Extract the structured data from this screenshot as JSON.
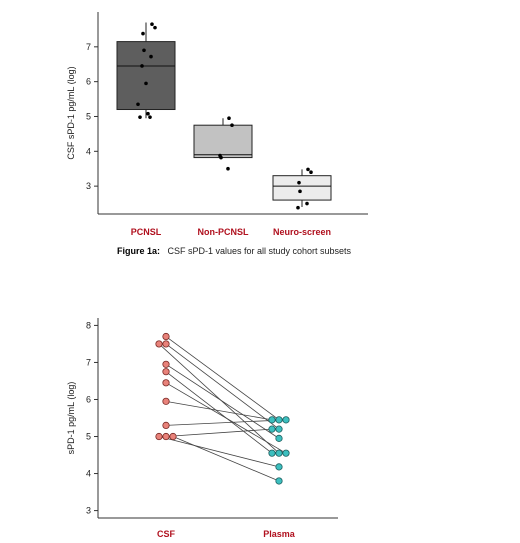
{
  "colors": {
    "category_label": "#b0101e",
    "caption_label": "#c0101e",
    "axis": "#333333",
    "csf_marker": "#e8827a",
    "csf_marker_edge": "#7a2a26",
    "plasma_marker": "#3cbfbf",
    "plasma_marker_edge": "#1f6060",
    "pair_line": "#444444"
  },
  "caption": {
    "label": "Figure 1a:",
    "text": "CSF sPD-1 values for all study cohort subsets"
  },
  "chart_data": [
    {
      "type": "box",
      "ylabel": "CSF sPD-1 pg/mL (log)",
      "xlabel": "",
      "ylim": [
        2.2,
        8.0
      ],
      "yticks": [
        "3",
        "4",
        "5",
        "6",
        "7"
      ],
      "categories": [
        "PCNSL",
        "Non-PCNSL",
        "Neuro-screen"
      ],
      "boxes": [
        {
          "name": "PCNSL",
          "fill": "#5e5e5e",
          "whisker_low": 4.95,
          "q1": 5.2,
          "median": 6.45,
          "q3": 7.15,
          "whisker_high": 7.7,
          "points": [
            7.65,
            7.55,
            7.38,
            6.9,
            6.72,
            6.45,
            5.95,
            5.35,
            5.08,
            4.98,
            4.98
          ]
        },
        {
          "name": "Non-PCNSL",
          "fill": "#c2c2c2",
          "whisker_low": 3.82,
          "q1": 3.82,
          "median": 3.9,
          "q3": 4.75,
          "whisker_high": 4.95,
          "points": [
            4.95,
            4.75,
            3.88,
            3.82,
            3.5
          ]
        },
        {
          "name": "Neuro-screen",
          "fill": "#ececec",
          "whisker_low": 2.4,
          "q1": 2.6,
          "median": 3.0,
          "q3": 3.3,
          "whisker_high": 3.48,
          "points": [
            3.48,
            3.4,
            3.1,
            2.85,
            2.5,
            2.38
          ]
        }
      ]
    },
    {
      "type": "scatter",
      "ylabel": "sPD-1 pg/mL (log)",
      "xlabel": "",
      "ylim": [
        2.8,
        8.2
      ],
      "yticks": [
        "3",
        "4",
        "5",
        "6",
        "7",
        "8"
      ],
      "categories": [
        "CSF",
        "Plasma"
      ],
      "pairs": [
        {
          "csf": 7.7,
          "plasma": 5.45
        },
        {
          "csf": 7.5,
          "plasma": 5.2
        },
        {
          "csf": 7.5,
          "plasma": 4.55
        },
        {
          "csf": 6.95,
          "plasma": 4.95
        },
        {
          "csf": 6.75,
          "plasma": 4.55
        },
        {
          "csf": 6.45,
          "plasma": 4.55
        },
        {
          "csf": 5.95,
          "plasma": 5.45
        },
        {
          "csf": 5.3,
          "plasma": 5.45
        },
        {
          "csf": 5.0,
          "plasma": 5.2
        },
        {
          "csf": 5.0,
          "plasma": 4.18
        },
        {
          "csf": 5.0,
          "plasma": 3.8
        }
      ]
    }
  ]
}
